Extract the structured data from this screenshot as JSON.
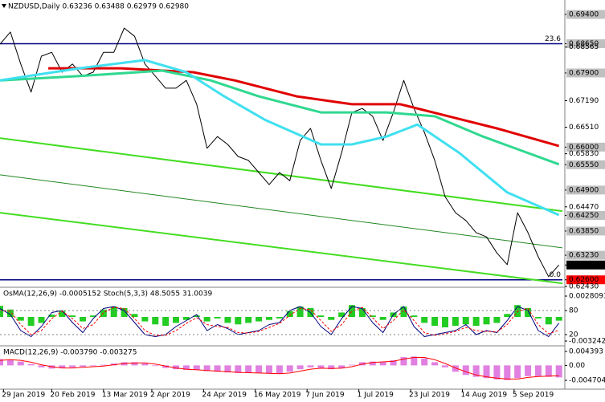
{
  "chart_data": [
    {
      "type": "line",
      "title": "NZDUSD,Daily  0.63236 0.63488 0.62979 0.62980",
      "xlim": [
        0,
        163
      ],
      "ylim": [
        0.6243,
        0.6977
      ],
      "x": [
        0,
        3,
        6,
        9,
        12,
        15,
        18,
        21,
        24,
        27,
        30,
        33,
        36,
        39,
        42,
        45,
        48,
        51,
        54,
        57,
        60,
        63,
        66,
        69,
        72,
        75,
        78,
        81,
        84,
        87,
        90,
        93,
        96,
        99,
        102,
        105,
        108,
        111,
        114,
        117,
        120,
        123,
        126,
        129,
        132,
        135,
        138,
        141,
        144,
        147,
        150,
        153,
        156,
        159,
        162
      ],
      "yticks": [
        {
          "value": 0.694,
          "label": "0.69400",
          "bg": "#c0c0c0",
          "fg": "#000000"
        },
        {
          "value": 0.6865,
          "label": "0.68650",
          "bg": "#c0c0c0",
          "fg": "#000000"
        },
        {
          "value": 0.68565,
          "label": "0.68565"
        },
        {
          "value": 0.679,
          "label": "0.67900",
          "bg": "#c0c0c0",
          "fg": "#000000"
        },
        {
          "value": 0.6719,
          "label": "0.67190"
        },
        {
          "value": 0.6651,
          "label": "0.66510"
        },
        {
          "value": 0.66,
          "label": "0.66000",
          "bg": "#c0c0c0",
          "fg": "#000000"
        },
        {
          "value": 0.6583,
          "label": "0.65830"
        },
        {
          "value": 0.6555,
          "label": "0.65550",
          "bg": "#c0c0c0",
          "fg": "#000000"
        },
        {
          "value": 0.649,
          "label": "0.64900",
          "bg": "#c0c0c0",
          "fg": "#000000"
        },
        {
          "value": 0.6447,
          "label": "0.64470"
        },
        {
          "value": 0.6425,
          "label": "0.64250",
          "bg": "#c0c0c0",
          "fg": "#000000"
        },
        {
          "value": 0.6385,
          "label": "0.63850",
          "bg": "#c0c0c0",
          "fg": "#000000"
        },
        {
          "value": 0.6323,
          "label": "0.63230",
          "bg": "#c0c0c0",
          "fg": "#000000"
        },
        {
          "value": 0.6298,
          "label": "0.62980",
          "bg": "#000000",
          "fg": "#ffffff"
        },
        {
          "value": 0.626,
          "label": "0.62600",
          "bg": "#ff0000",
          "fg": "#ffffff"
        },
        {
          "value": 0.6243,
          "label": "0.62430"
        }
      ],
      "levels": [
        {
          "value": 0.6865,
          "label": "23.6",
          "color": "#000080"
        },
        {
          "value": 0.626,
          "label": "0.0",
          "color": "#000080"
        }
      ],
      "trend_lines": [
        {
          "x": [
            0,
            163
          ],
          "y": [
            0.6623,
            0.6436
          ],
          "color": "#44dd22",
          "width": 2
        },
        {
          "x": [
            0,
            163
          ],
          "y": [
            0.6529,
            0.6342
          ],
          "color": "#228822",
          "width": 1
        },
        {
          "x": [
            0,
            163
          ],
          "y": [
            0.6432,
            0.6251
          ],
          "color": "#44dd22",
          "width": 2
        }
      ],
      "series": [
        {
          "kind": "line",
          "color": "#000000",
          "width": 1,
          "values": [
            0.6864,
            0.6895,
            0.6813,
            0.6741,
            0.6833,
            0.6843,
            0.6792,
            0.6813,
            0.6782,
            0.6792,
            0.6843,
            0.6843,
            0.6905,
            0.6884,
            0.6813,
            0.6782,
            0.6751,
            0.6751,
            0.6771,
            0.671,
            0.6597,
            0.6627,
            0.6607,
            0.6576,
            0.6566,
            0.6535,
            0.6504,
            0.6535,
            0.6514,
            0.6617,
            0.6648,
            0.6566,
            0.6494,
            0.6586,
            0.6689,
            0.6699,
            0.6679,
            0.6617,
            0.6689,
            0.6771,
            0.6699,
            0.6638,
            0.6566,
            0.6473,
            0.6432,
            0.6412,
            0.6381,
            0.637,
            0.6329,
            0.6299,
            0.6432,
            0.6381,
            0.6319,
            0.6268,
            0.6298
          ]
        },
        {
          "kind": "line",
          "color": "#e00000",
          "width": 3,
          "x": [
            14,
            35,
            56,
            68,
            86,
            102,
            116,
            130,
            144,
            162
          ],
          "values": [
            0.6802,
            0.6802,
            0.6792,
            0.6771,
            0.673,
            0.671,
            0.671,
            0.6679,
            0.6648,
            0.6603
          ]
        },
        {
          "kind": "line",
          "color": "#30d890",
          "width": 3,
          "x": [
            0,
            23,
            47,
            61,
            75,
            93,
            112,
            126,
            140,
            162
          ],
          "values": [
            0.6771,
            0.6782,
            0.6796,
            0.6771,
            0.673,
            0.6689,
            0.6689,
            0.6679,
            0.6627,
            0.6556
          ]
        },
        {
          "kind": "line",
          "color": "#40e0f0",
          "width": 3,
          "x": [
            0,
            23,
            42,
            54,
            65,
            77,
            93,
            102,
            112,
            121,
            133,
            147,
            162
          ],
          "values": [
            0.6771,
            0.6802,
            0.6823,
            0.6792,
            0.673,
            0.6669,
            0.6607,
            0.6607,
            0.6627,
            0.6658,
            0.6586,
            0.6484,
            0.6426
          ]
        }
      ]
    },
    {
      "type": "bar_line",
      "title": "OsMA(12,26,9) -0.0005152 Stoch(5,3,3) 48.5055 31.0039",
      "xlim": [
        0,
        163
      ],
      "ylim": [
        -0.00378,
        0.00378
      ],
      "y2lim": [
        -6,
        134
      ],
      "x": [
        0,
        3,
        6,
        9,
        12,
        15,
        18,
        21,
        24,
        27,
        30,
        33,
        36,
        39,
        42,
        45,
        48,
        51,
        54,
        57,
        60,
        63,
        66,
        69,
        72,
        75,
        78,
        81,
        84,
        87,
        90,
        93,
        96,
        99,
        102,
        105,
        108,
        111,
        114,
        117,
        120,
        123,
        126,
        129,
        132,
        135,
        138,
        141,
        144,
        147,
        150,
        153,
        156,
        159,
        162
      ],
      "yticks": [
        0.0028093,
        -0.003242
      ],
      "y2ticks": [
        80,
        20
      ],
      "series": [
        {
          "kind": "bar",
          "color": "#22cc22",
          "values": [
            0.0015,
            0.001,
            -0.0005,
            -0.0012,
            -0.0008,
            0.0003,
            0.0008,
            0.0002,
            -0.0006,
            0.0002,
            0.001,
            0.0014,
            0.0012,
            0.0004,
            -0.0006,
            -0.001,
            -0.0012,
            -0.0008,
            -0.0004,
            0.0002,
            -0.0006,
            -0.0002,
            -0.0008,
            -0.001,
            -0.0008,
            -0.0006,
            -0.0004,
            -0.0002,
            0.0008,
            0.0014,
            0.0012,
            0.0002,
            -0.0004,
            0.0006,
            0.0016,
            0.0012,
            0.0002,
            -0.0004,
            0.0006,
            0.0014,
            0.0002,
            -0.0008,
            -0.0012,
            -0.0014,
            -0.0012,
            -0.001,
            -0.0012,
            -0.001,
            -0.0008,
            0.0004,
            0.0016,
            0.0012,
            -0.0002,
            -0.001,
            -0.0005
          ]
        },
        {
          "kind": "line",
          "axis": "y2",
          "color": "#000080",
          "width": 1,
          "values": [
            85,
            70,
            30,
            15,
            40,
            75,
            80,
            50,
            25,
            60,
            85,
            90,
            80,
            50,
            20,
            15,
            20,
            40,
            55,
            70,
            30,
            45,
            35,
            20,
            25,
            30,
            45,
            50,
            80,
            90,
            75,
            40,
            20,
            60,
            90,
            85,
            50,
            25,
            70,
            90,
            40,
            15,
            20,
            25,
            30,
            45,
            20,
            30,
            25,
            55,
            90,
            80,
            30,
            15,
            48.5055
          ]
        },
        {
          "kind": "line",
          "axis": "y2",
          "color": "#ff0000",
          "width": 1,
          "dash": true,
          "values": [
            80,
            78,
            45,
            20,
            30,
            60,
            78,
            60,
            35,
            45,
            75,
            88,
            85,
            60,
            30,
            18,
            18,
            30,
            48,
            62,
            45,
            40,
            38,
            25,
            24,
            28,
            38,
            48,
            68,
            85,
            82,
            55,
            28,
            45,
            78,
            88,
            62,
            35,
            55,
            82,
            55,
            25,
            18,
            22,
            28,
            38,
            30,
            28,
            27,
            45,
            78,
            85,
            45,
            22,
            31.0039
          ]
        }
      ]
    },
    {
      "type": "bar_line",
      "title": "MACD(12,26,9) -0.003790 -0.003275",
      "xlim": [
        0,
        163
      ],
      "ylim": [
        -0.007231,
        0.005909
      ],
      "x": [
        0,
        3,
        6,
        9,
        12,
        15,
        18,
        21,
        24,
        27,
        30,
        33,
        36,
        39,
        42,
        45,
        48,
        51,
        54,
        57,
        60,
        63,
        66,
        69,
        72,
        75,
        78,
        81,
        84,
        87,
        90,
        93,
        96,
        99,
        102,
        105,
        108,
        111,
        114,
        117,
        120,
        123,
        126,
        129,
        132,
        135,
        138,
        141,
        144,
        147,
        150,
        153,
        156,
        159,
        162
      ],
      "yticks": [
        0.004393,
        {
          "value": 0,
          "label": "0.00"
        },
        -0.004704
      ],
      "xticks": [
        {
          "value": 1,
          "label": "29 Jan 2019"
        },
        {
          "value": 15,
          "label": "20 Feb 2019"
        },
        {
          "value": 30,
          "label": "13 Mar 2019"
        },
        {
          "value": 44,
          "label": "2 Apr 2019"
        },
        {
          "value": 59,
          "label": "24 Apr 2019"
        },
        {
          "value": 74,
          "label": "16 May 2019"
        },
        {
          "value": 89,
          "label": "7 Jun 2019"
        },
        {
          "value": 104,
          "label": "1 Jul 2019"
        },
        {
          "value": 119,
          "label": "23 Jul 2019"
        },
        {
          "value": 134,
          "label": "14 Aug 2019"
        },
        {
          "value": 149,
          "label": "5 Sep 2019"
        }
      ],
      "series": [
        {
          "kind": "bar",
          "color": "#e080e0",
          "values": [
            0.002,
            0.0018,
            0.0012,
            0.0004,
            -0.0006,
            -0.001,
            -0.0008,
            -0.0006,
            -0.0004,
            -0.0002,
            0.0002,
            0.0006,
            0.001,
            0.001,
            0.0006,
            -0.0002,
            -0.0008,
            -0.0012,
            -0.0014,
            -0.0014,
            -0.0018,
            -0.002,
            -0.0022,
            -0.0024,
            -0.0024,
            -0.0024,
            -0.0026,
            -0.0026,
            -0.002,
            -0.0012,
            -0.0006,
            -0.0008,
            -0.0012,
            -0.0008,
            0.0002,
            0.001,
            0.0012,
            0.0012,
            0.0016,
            0.0026,
            0.0028,
            0.0022,
            0.001,
            -0.0006,
            -0.002,
            -0.003,
            -0.0036,
            -0.004,
            -0.0044,
            -0.0046,
            -0.004,
            -0.0034,
            -0.0034,
            -0.0036,
            -0.00379
          ]
        },
        {
          "kind": "line",
          "color": "#ff0000",
          "width": 1,
          "values": [
            0.0016,
            0.0018,
            0.0016,
            0.001,
            0.0002,
            -0.0004,
            -0.0008,
            -0.0008,
            -0.0006,
            -0.0004,
            -0.0002,
            0.0002,
            0.0006,
            0.0008,
            0.0008,
            0.0004,
            -0.0002,
            -0.0008,
            -0.0012,
            -0.0014,
            -0.0016,
            -0.0018,
            -0.002,
            -0.0022,
            -0.0023,
            -0.0024,
            -0.0025,
            -0.0026,
            -0.0024,
            -0.0018,
            -0.0012,
            -0.0009,
            -0.001,
            -0.0009,
            -0.0004,
            0.0004,
            0.0009,
            0.0011,
            0.0013,
            0.002,
            0.0025,
            0.0025,
            0.0018,
            0.0006,
            -0.0008,
            -0.002,
            -0.003,
            -0.0036,
            -0.004,
            -0.0043,
            -0.0043,
            -0.0038,
            -0.0035,
            -0.0034,
            -0.003275
          ]
        }
      ]
    }
  ]
}
